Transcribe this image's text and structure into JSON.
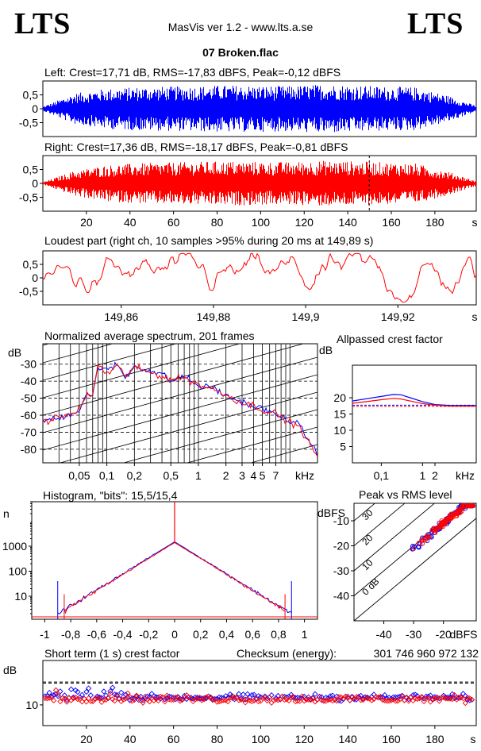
{
  "header": {
    "logo_left": "LTS",
    "logo_right": "LTS",
    "app_title": "MasVis ver 1.2 - www.lts.a.se",
    "file_title": "07 Broken.flac"
  },
  "colors": {
    "left": "#0000ff",
    "right": "#ff0000",
    "grid": "#000000"
  },
  "chart_data": [
    {
      "id": "left-waveform",
      "type": "line",
      "title": "Left: Crest=17,71 dB, RMS=-17,83 dBFS, Peak=-0,12 dBFS",
      "yticks": [
        "0,5",
        "0",
        "-0,5"
      ],
      "ylim": [
        -1,
        1
      ],
      "xlim": [
        0,
        199
      ],
      "series": [
        {
          "channel": "left",
          "envelope_peak": [
            0.08,
            0.55,
            0.72,
            0.78,
            0.8,
            0.82,
            0.85,
            0.83,
            0.82,
            0.88,
            0.85,
            0.8,
            0.78,
            0.5,
            0.1
          ]
        }
      ]
    },
    {
      "id": "right-waveform",
      "type": "line",
      "title": "Right: Crest=17,36 dB, RMS=-18,17 dBFS, Peak=-0,81 dBFS",
      "yticks": [
        "0,5",
        "0",
        "-0,5"
      ],
      "xticks": [
        "20",
        "40",
        "60",
        "80",
        "100",
        "120",
        "140",
        "160",
        "180"
      ],
      "xunit": "s",
      "ylim": [
        -1,
        1
      ],
      "xlim": [
        0,
        199
      ],
      "loudest_marker": 149.89,
      "series": [
        {
          "channel": "right",
          "envelope_peak": [
            0.05,
            0.45,
            0.65,
            0.72,
            0.75,
            0.78,
            0.8,
            0.78,
            0.77,
            0.82,
            0.8,
            0.76,
            0.72,
            0.45,
            0.08
          ]
        }
      ]
    },
    {
      "id": "loudest-part",
      "type": "line",
      "title": "Loudest part (right ch, 10 samples >95% during 20 ms at 149,89 s)",
      "yticks": [
        "0,5",
        "0",
        "-0,5"
      ],
      "xticks": [
        "149,86",
        "149,88",
        "149,9",
        "149,92"
      ],
      "xunit": "s",
      "xlim": [
        149.843,
        149.937
      ],
      "ylim": [
        -1,
        1
      ],
      "series": [
        {
          "channel": "right",
          "amplitude_range": [
            -0.9,
            0.9
          ]
        }
      ]
    },
    {
      "id": "spectrum",
      "type": "line",
      "title": "Normalized average spectrum, 201 frames",
      "ylabel": "dB",
      "yticks": [
        "-30",
        "-40",
        "-50",
        "-60",
        "-70",
        "-80"
      ],
      "xticks": [
        "0,05",
        "0,1",
        "0,2",
        "0,5",
        "1",
        "2",
        "3",
        "4",
        "5",
        "7"
      ],
      "xunit": "kHz",
      "xlim": [
        0.02,
        20
      ],
      "ylim": [
        -88,
        -18
      ],
      "scale_x": "log",
      "series": [
        {
          "channel": "left",
          "x": [
            0.02,
            0.03,
            0.04,
            0.05,
            0.06,
            0.07,
            0.08,
            0.1,
            0.13,
            0.16,
            0.2,
            0.3,
            0.4,
            0.5,
            0.7,
            1,
            1.5,
            2,
            3,
            4,
            5,
            7,
            9,
            12,
            15,
            20
          ],
          "y": [
            -63,
            -62,
            -59,
            -57,
            -47,
            -49,
            -31,
            -34,
            -30,
            -38,
            -31,
            -34,
            -36,
            -40,
            -37,
            -43,
            -44,
            -49,
            -52,
            -55,
            -56,
            -60,
            -62,
            -65,
            -72,
            -83
          ]
        },
        {
          "channel": "right",
          "x": [
            0.02,
            0.03,
            0.04,
            0.05,
            0.06,
            0.07,
            0.08,
            0.1,
            0.13,
            0.16,
            0.2,
            0.3,
            0.4,
            0.5,
            0.7,
            1,
            1.5,
            2,
            3,
            4,
            5,
            7,
            9,
            12,
            15,
            20
          ],
          "y": [
            -64,
            -61,
            -60,
            -56,
            -49,
            -48,
            -30,
            -36,
            -31,
            -37,
            -32,
            -35,
            -37,
            -39,
            -38,
            -42,
            -45,
            -48,
            -53,
            -54,
            -57,
            -59,
            -63,
            -66,
            -73,
            -85
          ]
        }
      ]
    },
    {
      "id": "allpassed-crest",
      "type": "line",
      "title": "Allpassed crest factor",
      "ylabel": "dB",
      "yticks": [
        "20",
        "15",
        "10",
        "5"
      ],
      "xticks": [
        "0,1",
        "1",
        "2"
      ],
      "xunit": "kHz",
      "xlim": [
        0.02,
        20
      ],
      "ylim": [
        0,
        30
      ],
      "scale_x": "log",
      "reference_levels": [
        17.71,
        17.36
      ],
      "series": [
        {
          "channel": "left",
          "x": [
            0.02,
            0.05,
            0.1,
            0.2,
            0.3,
            0.5,
            1,
            2,
            5,
            20
          ],
          "y": [
            19.0,
            19.8,
            20.4,
            21.0,
            20.9,
            20.0,
            18.8,
            17.9,
            17.6,
            17.6
          ]
        },
        {
          "channel": "right",
          "x": [
            0.02,
            0.05,
            0.1,
            0.2,
            0.3,
            0.5,
            1,
            2,
            5,
            20
          ],
          "y": [
            18.3,
            18.9,
            19.4,
            19.8,
            19.6,
            19.0,
            18.2,
            17.7,
            17.4,
            17.4
          ]
        }
      ]
    },
    {
      "id": "histogram",
      "type": "line",
      "title": "Histogram, \"bits\": 15,5/15,4",
      "ylabel": "n",
      "yticks": [
        "1000",
        "100",
        "10"
      ],
      "xticks": [
        "-1",
        "-0,8",
        "-0,6",
        "-0,4",
        "-0,2",
        "0",
        "0,2",
        "0,4",
        "0,6",
        "0,8",
        "1"
      ],
      "xlim": [
        -1.1,
        1.1
      ],
      "ylim": [
        1.2,
        60000
      ],
      "scale_y": "log",
      "series": [
        {
          "channel": "left",
          "x": [
            -0.9,
            -0.8,
            -0.6,
            -0.4,
            -0.2,
            0,
            0.2,
            0.4,
            0.6,
            0.8,
            0.9
          ],
          "y": [
            6,
            10,
            40,
            150,
            500,
            1500,
            500,
            150,
            40,
            10,
            6
          ]
        },
        {
          "channel": "right",
          "x": [
            -0.85,
            -0.8,
            -0.6,
            -0.4,
            -0.2,
            0,
            0.2,
            0.4,
            0.6,
            0.8,
            0.85
          ],
          "y": [
            4,
            7,
            30,
            120,
            420,
            1400,
            420,
            120,
            30,
            7,
            4
          ]
        }
      ]
    },
    {
      "id": "peak-vs-rms",
      "type": "scatter",
      "title": "Peak vs RMS level",
      "ylabel": "dBFS",
      "xlabel": "dBFS",
      "yticks": [
        "-10",
        "-20",
        "-30",
        "-40"
      ],
      "xticks": [
        "-40",
        "-30",
        "-20"
      ],
      "xlim": [
        -50,
        -9
      ],
      "ylim": [
        -50,
        -3
      ],
      "crest_lines": [
        "40",
        "30",
        "20",
        "10",
        "0 dB"
      ],
      "series": [
        {
          "channel": "left",
          "x_range": [
            -32,
            -10
          ],
          "y_range": [
            -27,
            -4
          ]
        },
        {
          "channel": "right",
          "x_range": [
            -31,
            -10
          ],
          "y_range": [
            -26,
            -4
          ]
        }
      ]
    },
    {
      "id": "short-term-crest",
      "type": "scatter",
      "title": "Short term (1 s) crest factor",
      "checksum_label": "Checksum (energy):",
      "checksum_value": "301 746 960 972 132",
      "ylabel": "dB",
      "yticks": [
        "10"
      ],
      "xticks": [
        "20",
        "40",
        "60",
        "80",
        "100",
        "120",
        "140",
        "160",
        "180"
      ],
      "xunit": "s",
      "xlim": [
        0,
        199
      ],
      "ylim": [
        3,
        25
      ],
      "reference_levels": [
        17.71,
        17.36
      ],
      "series": [
        {
          "channel": "left",
          "mean": 12.5,
          "spread": 1.6
        },
        {
          "channel": "right",
          "mean": 12.0,
          "spread": 1.8
        }
      ]
    }
  ]
}
